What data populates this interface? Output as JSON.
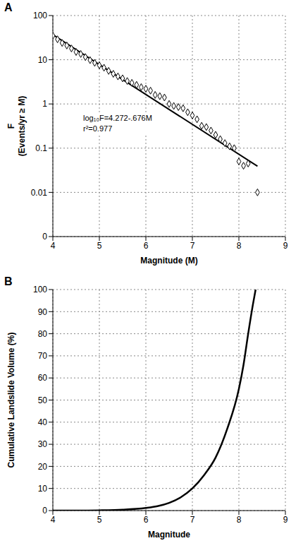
{
  "chart_data": [
    {
      "label": "A",
      "type": "scatter",
      "x_label": "Magnitude (M)",
      "y_label": [
        "F",
        "(Events/yr ≥ M)"
      ],
      "annotations": [
        "log₁₀F=4.272-.676M",
        "r²=0.977"
      ],
      "log": "y",
      "grid": true,
      "xlim": [
        4,
        9
      ],
      "xticks": [
        4,
        5,
        6,
        7,
        8,
        9
      ],
      "ylim": [
        0.001,
        100
      ],
      "yticks": [
        {
          "value": 0.001,
          "label": "0"
        },
        0.01,
        0.1,
        1,
        10,
        100
      ],
      "series": [
        {
          "type": "scatter",
          "marker": "diamond",
          "color": "#000000",
          "x": [
            4.0,
            4.1,
            4.2,
            4.3,
            4.4,
            4.5,
            4.6,
            4.7,
            4.8,
            4.9,
            5.0,
            5.1,
            5.2,
            5.3,
            5.4,
            5.5,
            5.6,
            5.7,
            5.8,
            5.9,
            6.0,
            6.1,
            6.2,
            6.3,
            6.4,
            6.5,
            6.6,
            6.7,
            6.8,
            6.9,
            7.0,
            7.1,
            7.2,
            7.3,
            7.4,
            7.5,
            7.6,
            7.7,
            7.8,
            7.9,
            8.0,
            8.1,
            8.2,
            8.4
          ],
          "values": [
            35,
            29,
            24,
            21,
            18,
            15,
            13.5,
            11.5,
            9.8,
            8.5,
            7.5,
            6.6,
            5.6,
            4.8,
            4.2,
            3.8,
            3.3,
            3.0,
            2.7,
            2.4,
            2.2,
            2.0,
            1.6,
            1.5,
            1.4,
            1.0,
            0.9,
            0.85,
            0.8,
            0.65,
            0.55,
            0.45,
            0.32,
            0.3,
            0.25,
            0.2,
            0.16,
            0.13,
            0.11,
            0.1,
            0.05,
            0.04,
            0.045,
            0.01
          ]
        },
        {
          "type": "line",
          "color": "#000000",
          "x": [
            4,
            8.4
          ],
          "values": [
            37,
            0.039
          ]
        }
      ]
    },
    {
      "label": "B",
      "type": "line",
      "x_label": "Magnitude",
      "y_label": "Cumulative Landslide Volume (%)",
      "grid": true,
      "xlim": [
        4,
        9
      ],
      "xticks": [
        4,
        5,
        6,
        7,
        8,
        9
      ],
      "ylim": [
        0,
        100
      ],
      "yticks": [
        0,
        10,
        20,
        30,
        40,
        50,
        60,
        70,
        80,
        90,
        100
      ],
      "series": [
        {
          "type": "line",
          "color": "#000000",
          "x": [
            4,
            4.5,
            5,
            5.5,
            6,
            6.25,
            6.5,
            6.75,
            7,
            7.25,
            7.5,
            7.75,
            8,
            8.1,
            8.2,
            8.3,
            8.36
          ],
          "values": [
            0,
            0,
            0.1,
            0.4,
            1.2,
            2,
            3.5,
            6,
            10,
            16,
            24,
            37,
            55,
            66,
            80,
            93,
            100
          ]
        }
      ]
    }
  ]
}
